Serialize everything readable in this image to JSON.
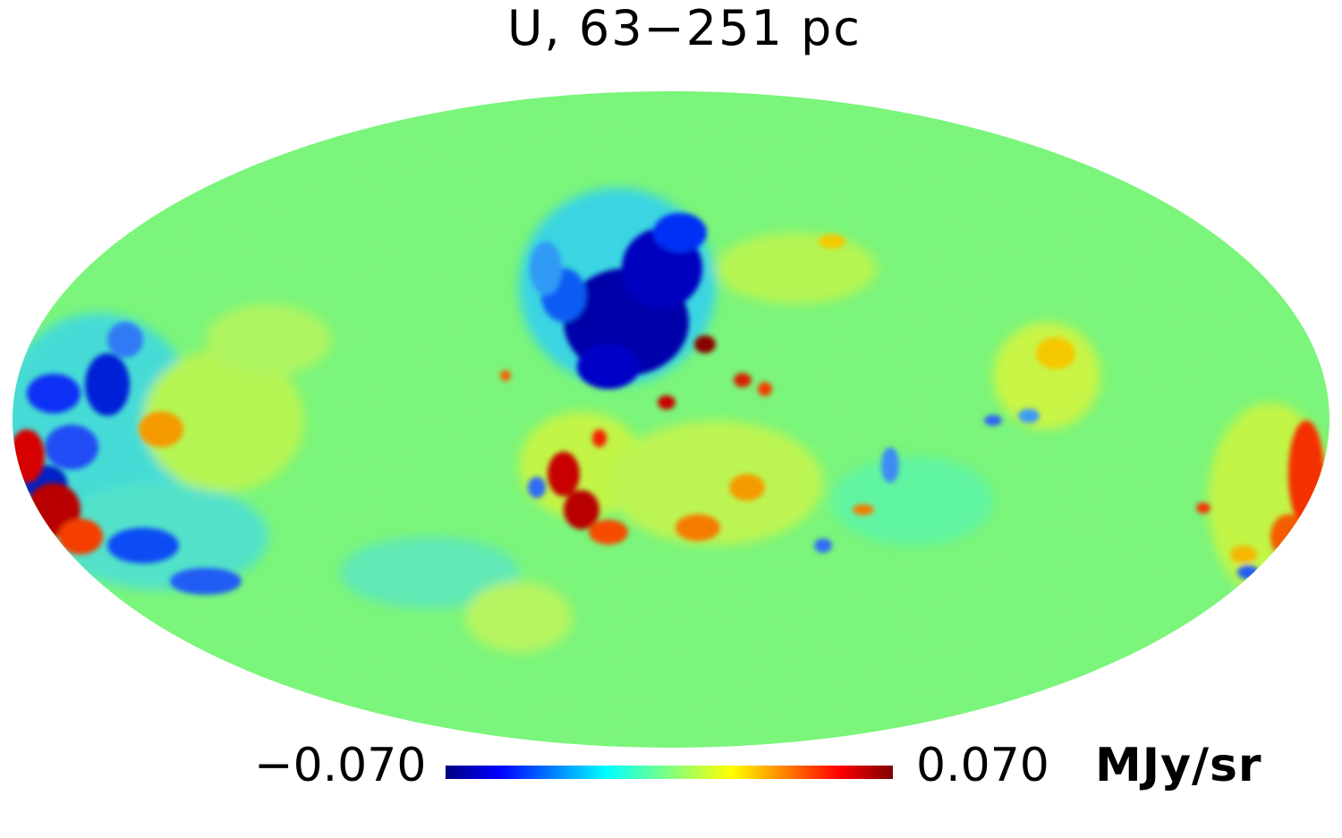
{
  "map": {
    "title": "U, 63−251 pc",
    "projection": "mollweide",
    "background_color": "#80ff80"
  },
  "colorbar": {
    "min_label": "−0.070",
    "max_label": "0.070",
    "unit": "MJy/sr",
    "min_value": -0.07,
    "max_value": 0.07,
    "colormap": "jet",
    "colors": [
      "#00007f",
      "#0000ff",
      "#00ffff",
      "#80ff80",
      "#ffff00",
      "#ff0000",
      "#7f0000"
    ]
  }
}
